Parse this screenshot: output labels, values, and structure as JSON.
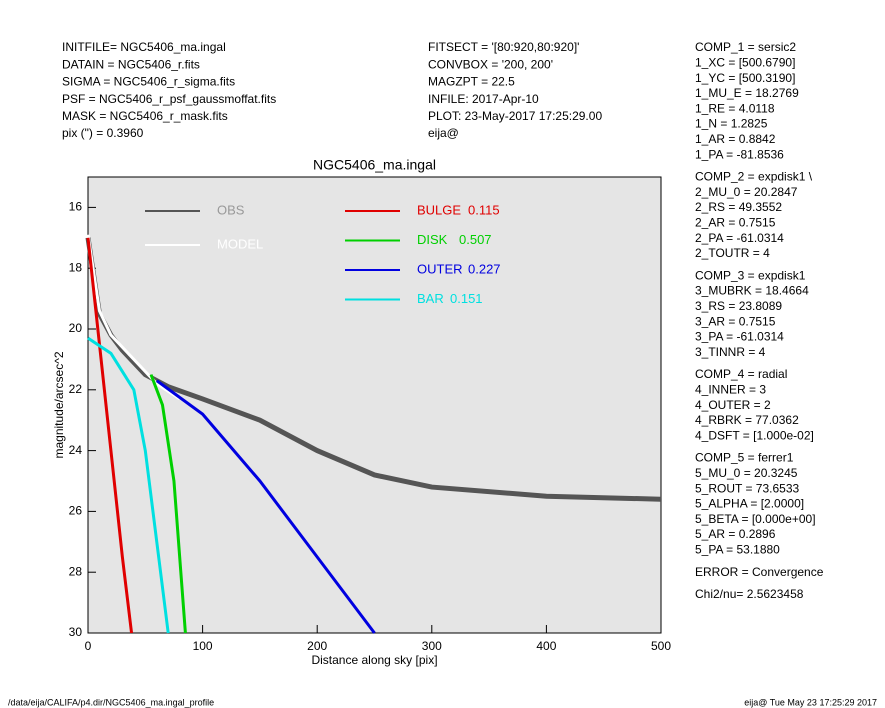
{
  "header_left": [
    "INITFILE= NGC5406_ma.ingal",
    "DATAIN  = NGC5406_r.fits",
    "SIGMA   = NGC5406_r_sigma.fits",
    "PSF     = NGC5406_r_psf_gaussmoffat.fits",
    "MASK    = NGC5406_r_mask.fits",
    "pix (\") =  0.3960"
  ],
  "header_mid": [
    "FITSECT = '[80:920,80:920]'",
    "CONVBOX = '200, 200'",
    "MAGZPT  =            22.5",
    "INFILE: 2017-Apr-10",
    "PLOT: 23-May-2017 17:25:29.00",
    "eija@"
  ],
  "params": [
    [
      "COMP_1  = sersic2",
      "1_XC    = [500.6790]",
      "1_YC    = [500.3190]",
      "1_MU_E = 18.2769",
      "1_RE    = 4.0118",
      "1_N     = 1.2825",
      "1_AR    = 0.8842",
      "1_PA    = -81.8536"
    ],
    [
      "COMP_2  = expdisk1 \\",
      "2_MU_0 = 20.2847",
      "2_RS    = 49.3552",
      "2_AR    = 0.7515",
      "2_PA    = -61.0314",
      "2_TOUTR =  4"
    ],
    [
      "COMP_3  = expdisk1",
      "3_MUBRK = 18.4664",
      "3_RS    = 23.8089",
      "3_AR    = 0.7515",
      "3_PA    = -61.0314",
      "3_TINNR =  4"
    ],
    [
      "COMP_4  = radial",
      "4_INNER =  3",
      "4_OUTER =  2",
      "4_RBRK  = 77.0362",
      "4_DSFT  = [1.000e-02]"
    ],
    [
      "COMP_5  = ferrer1",
      "5_MU_0 = 20.3245",
      "5_ROUT  = 73.6533",
      "5_ALPHA = [2.0000]",
      "5_BETA  = [0.000e+00]",
      "5_AR    = 0.2896",
      "5_PA    = 53.1880"
    ],
    [
      "ERROR   = Convergence"
    ],
    [
      "Chi2/nu=       2.5623458"
    ]
  ],
  "footer_left": "/data/eija/CALIFA/p4.dir/NGC5406_ma.ingal_profile",
  "footer_right": "eija@  Tue May 23 17:25:29 2017",
  "chart_data": {
    "type": "line",
    "title": "NGC5406_ma.ingal",
    "x_label": "Distance along sky [pix]",
    "y_label": "magnitude/arcsec^2",
    "xlim": [
      0,
      500
    ],
    "ylim": [
      15,
      30
    ],
    "y_inverted": true,
    "xticks": [
      0,
      100,
      200,
      300,
      400,
      500
    ],
    "yticks": [
      16,
      18,
      20,
      22,
      24,
      26,
      28,
      30
    ],
    "background": "#e5e5e5",
    "series": [
      {
        "name": "OBS",
        "color": "#555555",
        "x": [
          0,
          10,
          20,
          30,
          50,
          70,
          100,
          150,
          200,
          250,
          300,
          400,
          500
        ],
        "values": [
          17,
          19.5,
          20.2,
          20.7,
          21.5,
          21.9,
          22.3,
          23,
          24,
          24.8,
          25.2,
          25.5,
          25.6
        ]
      },
      {
        "name": "MODEL",
        "color": "#ffffff",
        "x": [
          0,
          10,
          20,
          40,
          60,
          80
        ],
        "values": [
          16.9,
          19.4,
          20.2,
          21,
          21.8,
          22.3
        ]
      },
      {
        "name": "BULGE",
        "fraction": 0.115,
        "color": "#e00000",
        "x": [
          0,
          10,
          20,
          30,
          38
        ],
        "values": [
          17,
          20.5,
          24,
          27.5,
          30
        ]
      },
      {
        "name": "DISK",
        "fraction": 0.507,
        "color": "#00d000",
        "x": [
          55,
          65,
          75,
          85
        ],
        "values": [
          21.5,
          22.5,
          25,
          30
        ]
      },
      {
        "name": "OUTER",
        "fraction": 0.227,
        "color": "#0000e0",
        "x": [
          60,
          100,
          150,
          200,
          250
        ],
        "values": [
          21.7,
          22.8,
          25,
          27.5,
          30
        ]
      },
      {
        "name": "BAR",
        "fraction": 0.151,
        "color": "#00e0e0",
        "x": [
          0,
          20,
          40,
          50,
          60,
          70
        ],
        "values": [
          20.3,
          20.8,
          22,
          24,
          27,
          30
        ]
      }
    ]
  }
}
